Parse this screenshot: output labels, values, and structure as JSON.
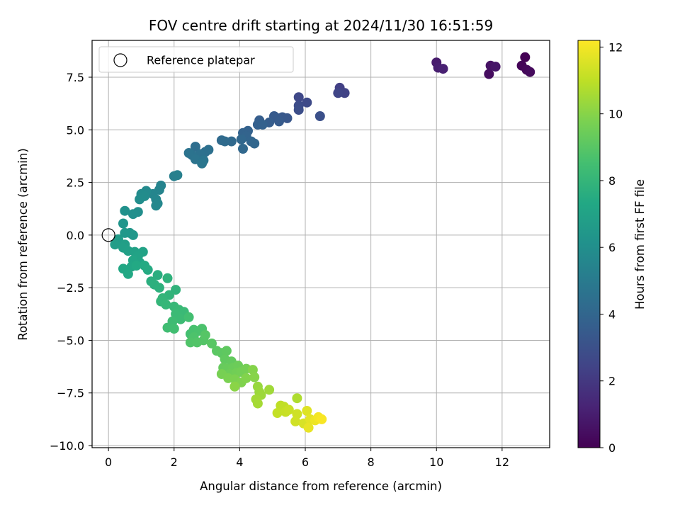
{
  "chart_data": {
    "type": "scatter",
    "title": "FOV centre drift starting at 2024/11/30 16:51:59",
    "xlabel": "Angular distance from reference (arcmin)",
    "ylabel": "Rotation from reference (arcmin)",
    "xlim": [
      -0.5,
      13.45
    ],
    "ylim": [
      -10.1,
      9.25
    ],
    "xticks": [
      0,
      2,
      4,
      6,
      8,
      10,
      12
    ],
    "yticks": [
      -10.0,
      -7.5,
      -5.0,
      -2.5,
      0.0,
      2.5,
      5.0,
      7.5
    ],
    "grid": true,
    "legend": {
      "placement": "upper-left",
      "entries": [
        "Reference platepar"
      ]
    },
    "reference": {
      "x": 0,
      "y": 0,
      "label": "Reference platepar"
    },
    "colorbar": {
      "label": "Hours from first FF file",
      "min": 0,
      "max": 12.2,
      "ticks": [
        0,
        2,
        4,
        6,
        8,
        10,
        12
      ],
      "colormap": "viridis"
    },
    "points_columns": [
      "x",
      "y",
      "hours"
    ],
    "points": [
      [
        12.7,
        8.45,
        0.0
      ],
      [
        12.6,
        8.05,
        0.1
      ],
      [
        12.75,
        7.85,
        0.2
      ],
      [
        12.85,
        7.75,
        0.3
      ],
      [
        11.6,
        7.65,
        0.4
      ],
      [
        11.65,
        8.05,
        0.6
      ],
      [
        11.8,
        8.0,
        0.7
      ],
      [
        10.0,
        8.2,
        0.9
      ],
      [
        10.05,
        7.95,
        1.0
      ],
      [
        10.2,
        7.9,
        1.1
      ],
      [
        7.05,
        7.0,
        2.3
      ],
      [
        7.2,
        6.75,
        2.4
      ],
      [
        7.0,
        6.75,
        2.5
      ],
      [
        5.8,
        6.55,
        2.6
      ],
      [
        6.05,
        6.3,
        2.7
      ],
      [
        5.8,
        6.15,
        2.8
      ],
      [
        5.8,
        5.95,
        2.9
      ],
      [
        6.45,
        5.65,
        3.0
      ],
      [
        5.45,
        5.55,
        3.3
      ],
      [
        5.3,
        5.6,
        3.35
      ],
      [
        5.15,
        5.55,
        3.4
      ],
      [
        5.05,
        5.65,
        3.45
      ],
      [
        5.2,
        5.4,
        3.5
      ],
      [
        4.9,
        5.35,
        3.55
      ],
      [
        4.6,
        5.45,
        3.6
      ],
      [
        4.55,
        5.25,
        3.7
      ],
      [
        4.7,
        5.25,
        3.75
      ],
      [
        4.25,
        4.95,
        3.8
      ],
      [
        4.1,
        4.85,
        3.85
      ],
      [
        4.2,
        4.7,
        3.9
      ],
      [
        4.35,
        4.45,
        3.95
      ],
      [
        4.45,
        4.35,
        4.0
      ],
      [
        4.05,
        4.55,
        4.05
      ],
      [
        4.1,
        4.1,
        4.1
      ],
      [
        3.75,
        4.45,
        4.15
      ],
      [
        3.45,
        4.5,
        4.2
      ],
      [
        3.55,
        4.45,
        4.25
      ],
      [
        2.65,
        4.2,
        4.4
      ],
      [
        2.95,
        3.95,
        4.45
      ],
      [
        3.05,
        4.05,
        4.5
      ],
      [
        2.8,
        3.85,
        4.55
      ],
      [
        2.55,
        3.8,
        4.6
      ],
      [
        2.45,
        3.9,
        4.65
      ],
      [
        2.65,
        3.6,
        4.7
      ],
      [
        2.9,
        3.55,
        4.75
      ],
      [
        2.85,
        3.4,
        4.8
      ],
      [
        2.0,
        2.8,
        5.2
      ],
      [
        2.1,
        2.85,
        5.25
      ],
      [
        1.6,
        2.35,
        5.4
      ],
      [
        1.55,
        2.15,
        5.45
      ],
      [
        1.35,
        1.95,
        5.5
      ],
      [
        1.45,
        1.7,
        5.55
      ],
      [
        1.5,
        1.5,
        5.6
      ],
      [
        1.45,
        1.4,
        5.65
      ],
      [
        1.15,
        2.1,
        5.75
      ],
      [
        1.0,
        1.95,
        5.8
      ],
      [
        1.1,
        1.85,
        5.85
      ],
      [
        0.95,
        1.7,
        5.9
      ],
      [
        0.9,
        1.1,
        5.95
      ],
      [
        0.75,
        1.0,
        6.0
      ],
      [
        0.5,
        1.15,
        6.1
      ],
      [
        0.45,
        0.55,
        6.3
      ],
      [
        0.65,
        0.1,
        6.35
      ],
      [
        0.75,
        0.0,
        6.4
      ],
      [
        0.5,
        0.1,
        6.45
      ],
      [
        0.3,
        -0.2,
        6.7
      ],
      [
        0.2,
        -0.45,
        6.75
      ],
      [
        0.5,
        -0.45,
        6.8
      ],
      [
        0.45,
        -0.6,
        6.85
      ],
      [
        0.6,
        -0.75,
        6.9
      ],
      [
        0.8,
        -0.8,
        6.95
      ],
      [
        1.05,
        -0.8,
        7.0
      ],
      [
        0.9,
        -1.0,
        7.05
      ],
      [
        0.95,
        -1.3,
        7.1
      ],
      [
        0.75,
        -1.2,
        7.15
      ],
      [
        0.7,
        -1.5,
        7.2
      ],
      [
        0.45,
        -1.6,
        7.25
      ],
      [
        0.6,
        -1.85,
        7.3
      ],
      [
        0.85,
        -1.45,
        7.35
      ],
      [
        1.1,
        -1.45,
        7.4
      ],
      [
        1.2,
        -1.65,
        7.45
      ],
      [
        1.5,
        -1.9,
        7.6
      ],
      [
        1.3,
        -2.2,
        7.65
      ],
      [
        1.4,
        -2.35,
        7.7
      ],
      [
        1.55,
        -2.5,
        7.75
      ],
      [
        1.8,
        -2.05,
        7.8
      ],
      [
        2.05,
        -2.6,
        7.85
      ],
      [
        1.85,
        -2.85,
        7.9
      ],
      [
        1.65,
        -3.0,
        7.95
      ],
      [
        1.6,
        -3.15,
        8.0
      ],
      [
        1.75,
        -3.3,
        8.05
      ],
      [
        2.0,
        -3.4,
        8.1
      ],
      [
        2.15,
        -3.55,
        8.15
      ],
      [
        2.3,
        -3.65,
        8.2
      ],
      [
        2.05,
        -3.75,
        8.25
      ],
      [
        2.2,
        -4.0,
        8.3
      ],
      [
        1.95,
        -4.1,
        8.35
      ],
      [
        1.8,
        -4.4,
        8.4
      ],
      [
        2.0,
        -4.45,
        8.45
      ],
      [
        2.45,
        -3.9,
        8.5
      ],
      [
        2.5,
        -4.7,
        8.55
      ],
      [
        2.6,
        -4.5,
        8.6
      ],
      [
        2.75,
        -4.55,
        8.65
      ],
      [
        2.85,
        -4.45,
        8.7
      ],
      [
        2.6,
        -4.85,
        8.75
      ],
      [
        2.5,
        -5.1,
        8.8
      ],
      [
        2.7,
        -5.1,
        8.85
      ],
      [
        2.9,
        -5.0,
        8.9
      ],
      [
        2.95,
        -4.75,
        8.95
      ],
      [
        3.15,
        -5.15,
        9.0
      ],
      [
        3.3,
        -5.5,
        9.05
      ],
      [
        3.45,
        -5.6,
        9.1
      ],
      [
        3.6,
        -5.5,
        9.15
      ],
      [
        3.55,
        -5.9,
        9.2
      ],
      [
        3.75,
        -6.0,
        9.25
      ],
      [
        3.5,
        -6.3,
        9.3
      ],
      [
        3.6,
        -6.35,
        9.35
      ],
      [
        3.8,
        -6.3,
        9.4
      ],
      [
        3.95,
        -6.2,
        9.45
      ],
      [
        3.7,
        -6.6,
        9.5
      ],
      [
        3.9,
        -6.55,
        9.55
      ],
      [
        4.05,
        -6.5,
        9.6
      ],
      [
        4.2,
        -6.35,
        9.65
      ],
      [
        3.45,
        -6.6,
        9.7
      ],
      [
        3.65,
        -6.8,
        9.75
      ],
      [
        3.85,
        -6.85,
        9.8
      ],
      [
        4.05,
        -7.0,
        9.85
      ],
      [
        4.2,
        -6.8,
        9.9
      ],
      [
        4.4,
        -6.4,
        9.95
      ],
      [
        4.45,
        -6.75,
        10.0
      ],
      [
        3.85,
        -7.2,
        10.05
      ],
      [
        4.55,
        -7.2,
        10.3
      ],
      [
        4.6,
        -7.45,
        10.35
      ],
      [
        4.65,
        -7.6,
        10.4
      ],
      [
        4.9,
        -7.35,
        10.45
      ],
      [
        4.5,
        -7.8,
        10.5
      ],
      [
        4.55,
        -8.0,
        10.55
      ],
      [
        5.75,
        -7.75,
        10.7
      ],
      [
        5.25,
        -8.1,
        11.0
      ],
      [
        5.35,
        -8.15,
        11.05
      ],
      [
        5.15,
        -8.45,
        11.1
      ],
      [
        5.4,
        -8.4,
        11.15
      ],
      [
        5.5,
        -8.3,
        11.2
      ],
      [
        5.75,
        -8.5,
        11.3
      ],
      [
        5.7,
        -8.85,
        11.35
      ],
      [
        5.95,
        -8.95,
        11.5
      ],
      [
        6.05,
        -8.35,
        11.6
      ],
      [
        6.15,
        -8.75,
        11.7
      ],
      [
        6.1,
        -9.15,
        11.8
      ],
      [
        6.3,
        -8.8,
        11.9
      ],
      [
        6.4,
        -8.65,
        12.0
      ],
      [
        6.5,
        -8.75,
        12.1
      ]
    ]
  }
}
